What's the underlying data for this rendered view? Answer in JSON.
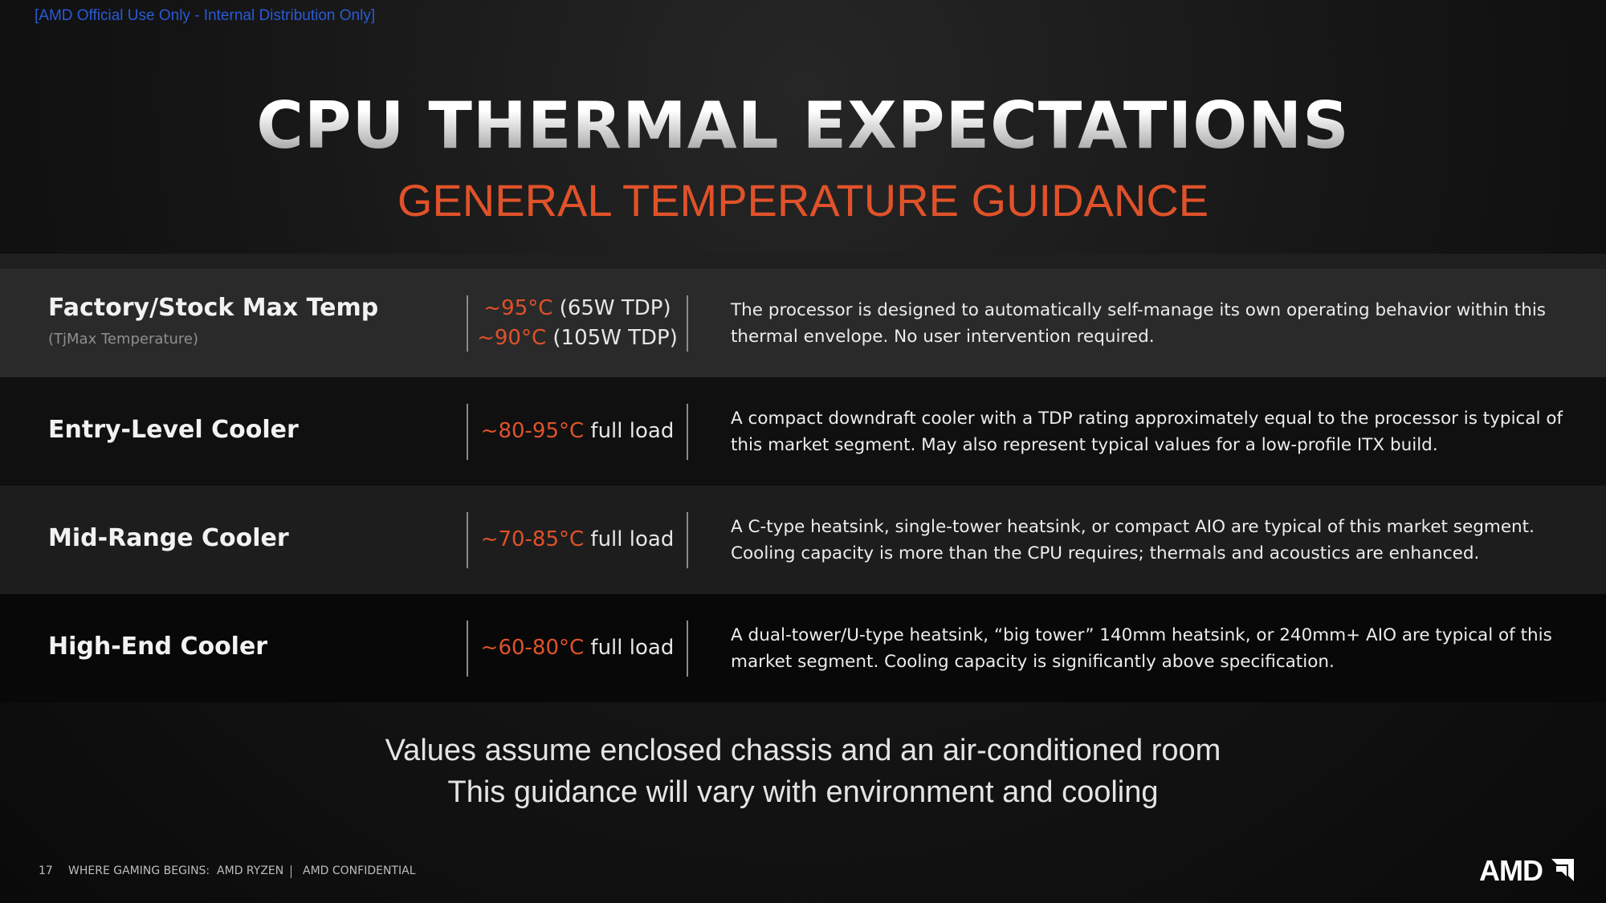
{
  "banner": "[AMD Official Use Only - Internal Distribution Only]",
  "header": {
    "title": "CPU THERMAL EXPECTATIONS",
    "subtitle": "GENERAL TEMPERATURE GUIDANCE"
  },
  "table": {
    "rows": [
      {
        "name": "Factory/Stock Max Temp",
        "sub": "(TjMax Temperature)",
        "temps": [
          {
            "range": "~95°C",
            "note": "(65W TDP)"
          },
          {
            "range": "~90°C",
            "note": "(105W TDP)"
          }
        ],
        "description": "The processor is designed to automatically self-manage its own operating behavior within this thermal envelope. No user intervention required."
      },
      {
        "name": "Entry-Level Cooler",
        "temps": [
          {
            "range": "~80-95°C",
            "note": "full load"
          }
        ],
        "description": "A compact downdraft cooler with a TDP rating approximately equal to the processor is typical of this market segment. May also represent typical values for a low-profile ITX build."
      },
      {
        "name": "Mid-Range Cooler",
        "temps": [
          {
            "range": "~70-85°C",
            "note": "full load"
          }
        ],
        "description": "A C-type heatsink, single-tower heatsink, or compact AIO are typical of this market segment. Cooling capacity is more than the CPU requires; thermals and acoustics are enhanced."
      },
      {
        "name": "High-End Cooler",
        "temps": [
          {
            "range": "~60-80°C",
            "note": "full load"
          }
        ],
        "description": "A dual-tower/U-type heatsink, “big tower” 140mm heatsink, or 240mm+ AIO are typical of this market segment. Cooling capacity is significantly above specification."
      }
    ]
  },
  "notes": [
    "Values assume enclosed chassis and an air-conditioned room",
    "This guidance will vary with environment and cooling"
  ],
  "footer": {
    "page": "17",
    "text": "WHERE GAMING BEGINS:  AMD RYZEN",
    "confidential": "AMD CONFIDENTIAL",
    "logo": "AMD"
  }
}
